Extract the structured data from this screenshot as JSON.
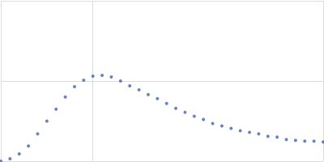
{
  "chart_data": {
    "type": "scatter",
    "x": [
      0.0,
      0.1,
      0.2,
      0.3,
      0.4,
      0.5,
      0.6,
      0.7,
      0.8,
      0.9,
      1.0,
      1.1,
      1.2,
      1.3,
      1.4,
      1.5,
      1.6,
      1.7,
      1.8,
      1.9,
      2.0,
      2.1,
      2.2,
      2.3,
      2.4,
      2.5,
      2.6,
      2.7,
      2.8,
      2.9,
      3.0,
      3.1,
      3.2,
      3.3,
      3.4,
      3.5
    ],
    "values": [
      0.0,
      0.03,
      0.09,
      0.19,
      0.34,
      0.5,
      0.65,
      0.8,
      0.93,
      1.01,
      1.06,
      1.07,
      1.05,
      1.0,
      0.94,
      0.89,
      0.83,
      0.78,
      0.72,
      0.66,
      0.61,
      0.56,
      0.52,
      0.47,
      0.44,
      0.41,
      0.38,
      0.36,
      0.34,
      0.31,
      0.3,
      0.27,
      0.26,
      0.25,
      0.25,
      0.24
    ],
    "color": "#3a67b5",
    "marker": "circle",
    "xlim": [
      0,
      3.5
    ],
    "xticks": [
      0,
      1,
      3.5
    ],
    "ylim": [
      0,
      2
    ],
    "yticks": [
      0,
      1,
      2
    ],
    "grid": true,
    "tick_labels": false
  }
}
